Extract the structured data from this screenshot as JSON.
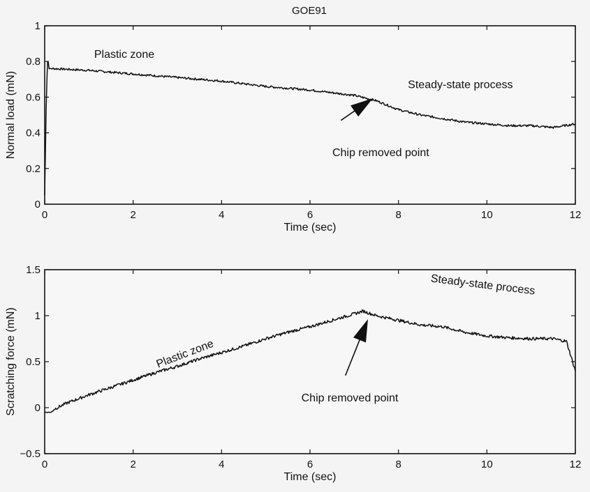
{
  "figure_title": "GOE91",
  "chart_data": [
    {
      "type": "line",
      "title": "GOE91",
      "xlabel": "Time (sec)",
      "ylabel": "Normal load (mN)",
      "xlim": [
        0,
        12
      ],
      "ylim": [
        0,
        1
      ],
      "xticks": [
        "0",
        "2",
        "4",
        "6",
        "8",
        "10",
        "12"
      ],
      "yticks": [
        "0",
        "0.2",
        "0.4",
        "0.6",
        "0.8",
        "1"
      ],
      "grid": false,
      "series": [
        {
          "x": [
            0.0,
            0.03,
            0.06,
            0.08,
            0.1,
            0.2,
            1,
            2,
            3,
            4,
            5,
            6,
            7,
            7.5,
            8,
            8.5,
            9,
            9.5,
            10,
            10.5,
            11,
            11.5,
            12
          ],
          "y": [
            0.05,
            0.5,
            0.8,
            0.8,
            0.76,
            0.76,
            0.75,
            0.73,
            0.71,
            0.69,
            0.66,
            0.64,
            0.61,
            0.58,
            0.53,
            0.5,
            0.48,
            0.46,
            0.45,
            0.44,
            0.44,
            0.43,
            0.45
          ]
        }
      ],
      "annotations": [
        {
          "text": "Plastic zone",
          "x": 1.8,
          "y": 0.82
        },
        {
          "text": "Steady-state process",
          "x": 9.4,
          "y": 0.65
        },
        {
          "text": "Chip removed point",
          "x": 7.6,
          "y": 0.27
        }
      ],
      "arrow": {
        "from": [
          6.7,
          0.47
        ],
        "to": [
          7.4,
          0.59
        ]
      }
    },
    {
      "type": "line",
      "xlabel": "Time (sec)",
      "ylabel": "Scratching force (mN)",
      "xlim": [
        0,
        12
      ],
      "ylim": [
        -0.5,
        1.5
      ],
      "xticks": [
        "0",
        "2",
        "4",
        "6",
        "8",
        "10",
        "12"
      ],
      "yticks": [
        "−0.5",
        "0",
        "0.5",
        "1",
        "1.5"
      ],
      "grid": false,
      "series": [
        {
          "x": [
            0.0,
            0.15,
            0.2,
            0.5,
            1,
            1.5,
            2,
            2.5,
            3,
            3.5,
            4,
            4.5,
            5,
            5.5,
            6,
            6.5,
            7,
            7.2,
            7.5,
            8,
            8.5,
            9,
            9.5,
            10,
            10.5,
            11,
            11.5,
            11.8,
            12
          ],
          "y": [
            -0.05,
            -0.05,
            -0.02,
            0.05,
            0.14,
            0.22,
            0.3,
            0.38,
            0.45,
            0.53,
            0.6,
            0.67,
            0.75,
            0.82,
            0.88,
            0.95,
            1.02,
            1.05,
            1.0,
            0.95,
            0.9,
            0.88,
            0.82,
            0.78,
            0.76,
            0.75,
            0.75,
            0.72,
            0.4
          ]
        }
      ],
      "annotations": [
        {
          "text": "Plastic zone",
          "x": 3.2,
          "y": 0.55,
          "rotate": -21
        },
        {
          "text": "Steady-state process",
          "x": 9.9,
          "y": 1.3,
          "rotate": 7
        },
        {
          "text": "Chip removed point",
          "x": 6.9,
          "y": 0.07
        }
      ],
      "arrow": {
        "from": [
          6.8,
          0.35
        ],
        "to": [
          7.3,
          0.95
        ]
      }
    }
  ]
}
